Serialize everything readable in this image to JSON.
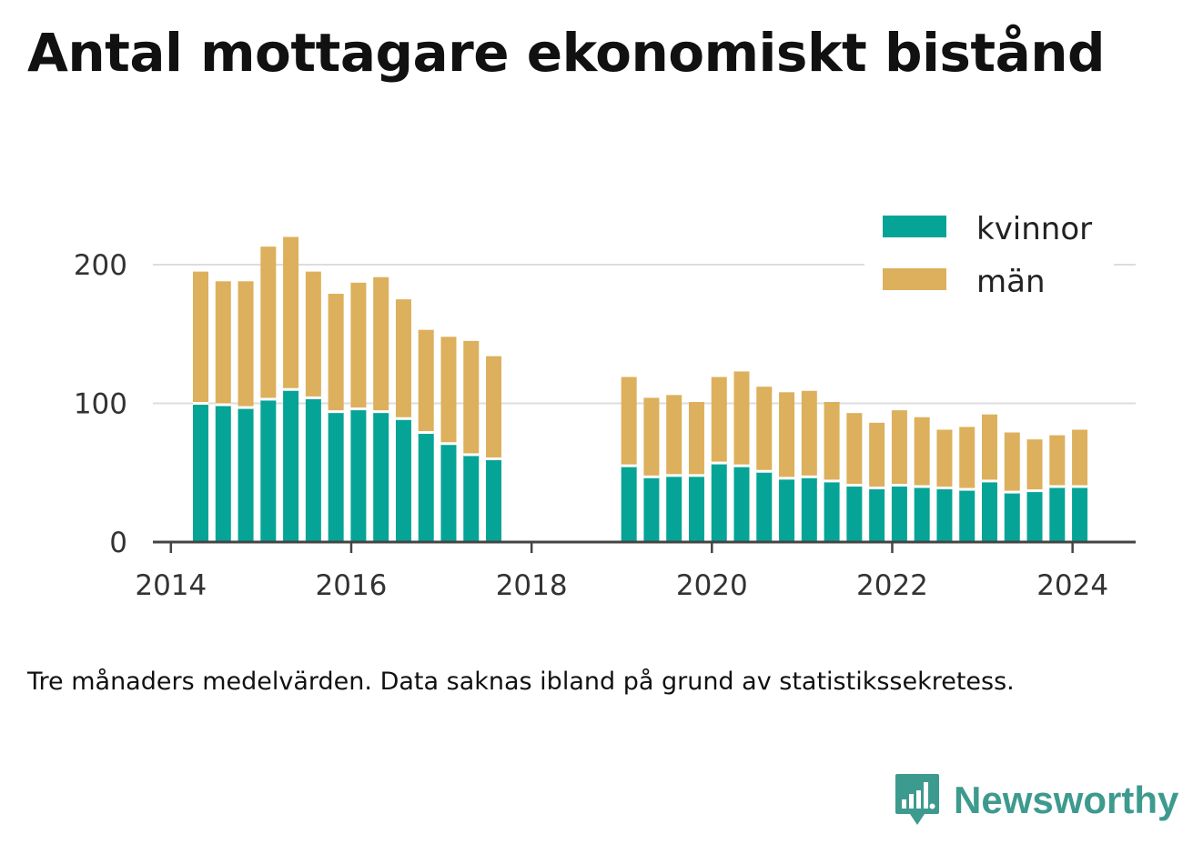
{
  "chart_data": {
    "type": "bar",
    "stacked": true,
    "title": "Antal mottagare ekonomiskt bistånd",
    "note": "Tre månaders medelvärden. Data saknas ibland på grund av statistikssekretess.",
    "xlabel": "",
    "ylabel": "",
    "ylim": [
      0,
      240
    ],
    "xlim": [
      2013.8,
      2024.7
    ],
    "grid": true,
    "legend_position": "top-right",
    "x_ticks": [
      "2014",
      "2016",
      "2018",
      "2020",
      "2022",
      "2024"
    ],
    "y_ticks": [
      "0",
      "100",
      "200"
    ],
    "colors": {
      "kvinnor": "#05a496",
      "män": "#dcb05c",
      "grid": "#dddddd",
      "axis": "#444444"
    },
    "x": [
      2014.33,
      2014.58,
      2014.83,
      2015.08,
      2015.33,
      2015.58,
      2015.83,
      2016.08,
      2016.33,
      2016.58,
      2016.83,
      2017.08,
      2017.33,
      2017.58,
      2019.08,
      2019.33,
      2019.58,
      2019.83,
      2020.08,
      2020.33,
      2020.58,
      2020.83,
      2021.08,
      2021.33,
      2021.58,
      2021.83,
      2022.08,
      2022.33,
      2022.58,
      2022.83,
      2023.08,
      2023.33,
      2023.58,
      2023.83,
      2024.08
    ],
    "series": [
      {
        "name": "kvinnor",
        "values": [
          100,
          99,
          97,
          103,
          110,
          104,
          94,
          96,
          94,
          89,
          79,
          71,
          63,
          60,
          55,
          47,
          48,
          48,
          57,
          55,
          51,
          46,
          47,
          44,
          41,
          39,
          41,
          40,
          39,
          38,
          44,
          36,
          37,
          40,
          40
        ]
      },
      {
        "name": "män",
        "values": [
          95,
          89,
          91,
          110,
          110,
          91,
          85,
          91,
          97,
          86,
          74,
          77,
          82,
          74,
          64,
          57,
          58,
          53,
          62,
          68,
          61,
          62,
          62,
          57,
          52,
          47,
          54,
          50,
          42,
          45,
          48,
          43,
          37,
          37,
          41
        ]
      }
    ]
  },
  "brand": {
    "name": "Newsworthy",
    "icon": "chart-bubble-icon"
  }
}
